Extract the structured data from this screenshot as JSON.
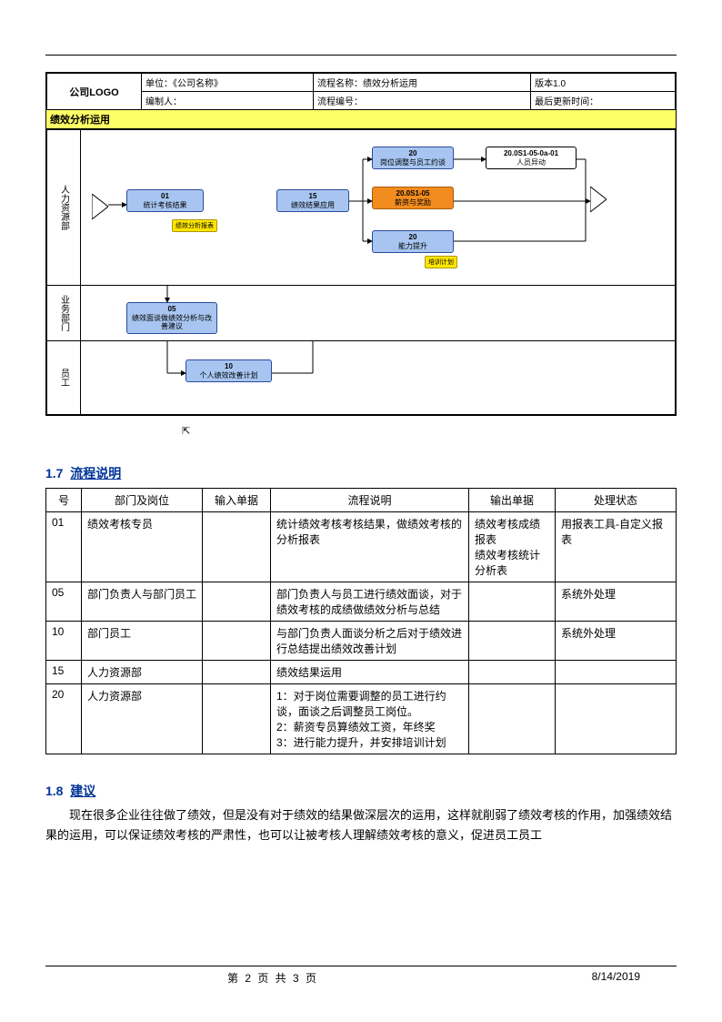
{
  "header": {
    "logo": "公司LOGO",
    "unit_label": "单位：",
    "unit_value": "《公司名称》",
    "flowname_label": "流程名称：",
    "flowname_value": "绩效分析运用",
    "version": "版本1.0",
    "author_label": "编制人：",
    "flowno_label": "流程编号：",
    "updated_label": "最后更新时间："
  },
  "swimlane": {
    "title": "绩效分析运用",
    "lanes": [
      "人力资源部",
      "业务部门",
      "员工"
    ],
    "nodes": {
      "n01": {
        "num": "01",
        "label": "统计考核结果"
      },
      "tag01": "绩效分析报表",
      "n05": {
        "num": "05",
        "label": "绩效面谈做绩效分析与改善建议"
      },
      "n10": {
        "num": "10",
        "label": "个人绩效改善计划"
      },
      "n15": {
        "num": "15",
        "label": "绩效结果应用"
      },
      "n20a": {
        "num": "20",
        "label": "岗位调整与员工约谈"
      },
      "n20b": {
        "num": "20.0S1-05",
        "label": "薪资与奖励"
      },
      "n20c": {
        "num": "20",
        "label": "能力提升"
      },
      "tag20c": "培训计划",
      "ext": {
        "num": "20.0S1-05-0a-01",
        "label": "人员异动"
      }
    }
  },
  "section17": {
    "num": "1.7",
    "title": "流程说明"
  },
  "table": {
    "headers": [
      "号",
      "部门及岗位",
      "输入单据",
      "流程说明",
      "输出单据",
      "处理状态"
    ],
    "rows": [
      {
        "no": "01",
        "dept": "绩效考核专员",
        "in": "",
        "desc": "统计绩效考核考核结果，做绩效考核的分析报表",
        "out": "绩效考核成绩报表\n绩效考核统计分析表",
        "status": "用报表工具-自定义报表"
      },
      {
        "no": "05",
        "dept": "部门负责人与部门员工",
        "in": "",
        "desc": "部门负责人与员工进行绩效面谈，对于绩效考核的成绩做绩效分析与总结",
        "out": "",
        "status": "系统外处理"
      },
      {
        "no": "10",
        "dept": "部门员工",
        "in": "",
        "desc": "与部门负责人面谈分析之后对于绩效进行总结提出绩效改善计划",
        "out": "",
        "status": "系统外处理"
      },
      {
        "no": "15",
        "dept": "人力资源部",
        "in": "",
        "desc": "绩效结果运用",
        "out": "",
        "status": ""
      },
      {
        "no": "20",
        "dept": "人力资源部",
        "in": "",
        "desc": "1：对于岗位需要调整的员工进行约谈，面谈之后调整员工岗位。\n2：薪资专员算绩效工资，年终奖\n3：进行能力提升，并安排培训计划",
        "out": "",
        "status": ""
      }
    ]
  },
  "section18": {
    "num": "1.8",
    "title": "建议",
    "body": "现在很多企业往往做了绩效，但是没有对于绩效的结果做深层次的运用，这样就削弱了绩效考核的作用，加强绩效结果的运用，可以保证绩效考核的严肃性，也可以让被考核人理解绩效考核的意义，促进员工员工"
  },
  "footer": {
    "page": "第 2 页 共 3 页",
    "date": "8/14/2019"
  }
}
